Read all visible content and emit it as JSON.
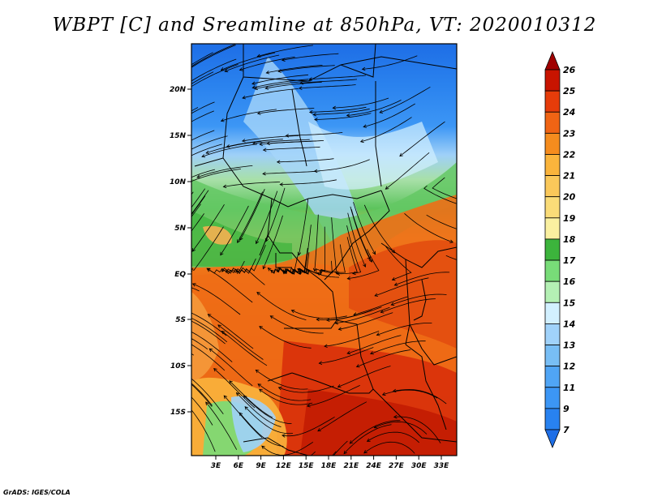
{
  "title": "WBPT [C] and Sreamline at 850hPa, VT: 2020010312",
  "credit": "GrADS: IGES/COLA",
  "map": {
    "lat_ticks": [
      "20N",
      "15N",
      "10N",
      "5N",
      "EQ",
      "5S",
      "10S",
      "15S"
    ],
    "lon_ticks": [
      "3E",
      "6E",
      "9E",
      "12E",
      "15E",
      "18E",
      "21E",
      "24E",
      "27E",
      "30E",
      "33E"
    ]
  },
  "colorbar": {
    "levels": [
      "7",
      "9",
      "11",
      "12",
      "13",
      "14",
      "15",
      "16",
      "17",
      "18",
      "19",
      "20",
      "21",
      "22",
      "23",
      "24",
      "25",
      "26"
    ],
    "colors": [
      "#1e6ee6",
      "#2882f0",
      "#3c96f5",
      "#50a5f5",
      "#78bef5",
      "#a0d2fa",
      "#d2f0ff",
      "#b4f0b4",
      "#78dc78",
      "#3cb43c",
      "#faf0a0",
      "#fadc78",
      "#fac85a",
      "#fab43c",
      "#f58c1e",
      "#f06414",
      "#e63c0a",
      "#c81400",
      "#a00000"
    ]
  }
}
